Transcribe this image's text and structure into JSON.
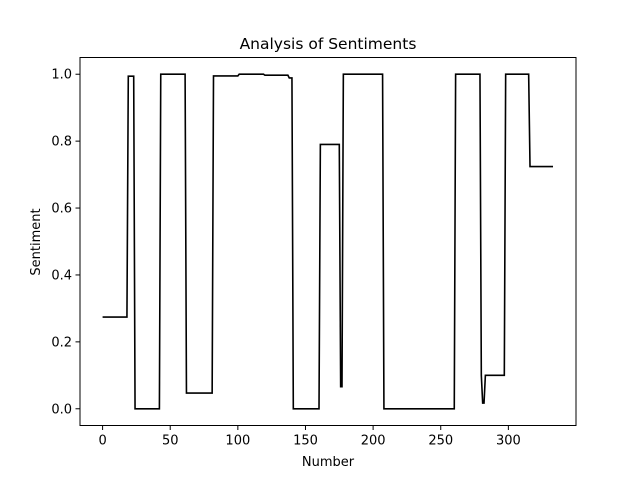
{
  "chart_data": {
    "type": "line",
    "title": "Analysis of Sentiments",
    "xlabel": "Number",
    "ylabel": "Sentiment",
    "xlim": [
      -16.7,
      350
    ],
    "ylim": [
      -0.05,
      1.05
    ],
    "xticks": [
      0,
      50,
      100,
      150,
      200,
      250,
      300
    ],
    "yticks": [
      0.0,
      0.2,
      0.4,
      0.6,
      0.8,
      1.0
    ],
    "xtick_labels": [
      "0",
      "50",
      "100",
      "150",
      "200",
      "250",
      "300"
    ],
    "ytick_labels": [
      "0.0",
      "0.2",
      "0.4",
      "0.6",
      "0.8",
      "1.0"
    ],
    "grid": false,
    "line_color": "#000000",
    "series": [
      {
        "x": [
          0,
          18,
          19,
          23,
          24,
          42,
          43,
          61,
          62,
          81,
          82,
          100,
          101,
          119,
          120,
          137,
          138,
          140,
          141,
          160,
          161,
          175,
          176,
          177,
          178,
          207,
          208,
          260,
          261,
          279,
          280,
          281,
          282,
          283,
          284,
          297,
          298,
          315,
          316,
          333
        ],
        "y": [
          0.274,
          0.274,
          0.994,
          0.994,
          0.0,
          0.0,
          1.0,
          1.0,
          0.047,
          0.047,
          0.995,
          0.995,
          1.0,
          1.0,
          0.997,
          0.997,
          0.989,
          0.989,
          0.0,
          0.0,
          0.79,
          0.79,
          0.066,
          0.066,
          1.0,
          1.0,
          0.0,
          0.0,
          1.0,
          1.0,
          0.1,
          0.017,
          0.017,
          0.1,
          0.1,
          0.1,
          1.0,
          1.0,
          0.724,
          0.724
        ]
      }
    ]
  }
}
